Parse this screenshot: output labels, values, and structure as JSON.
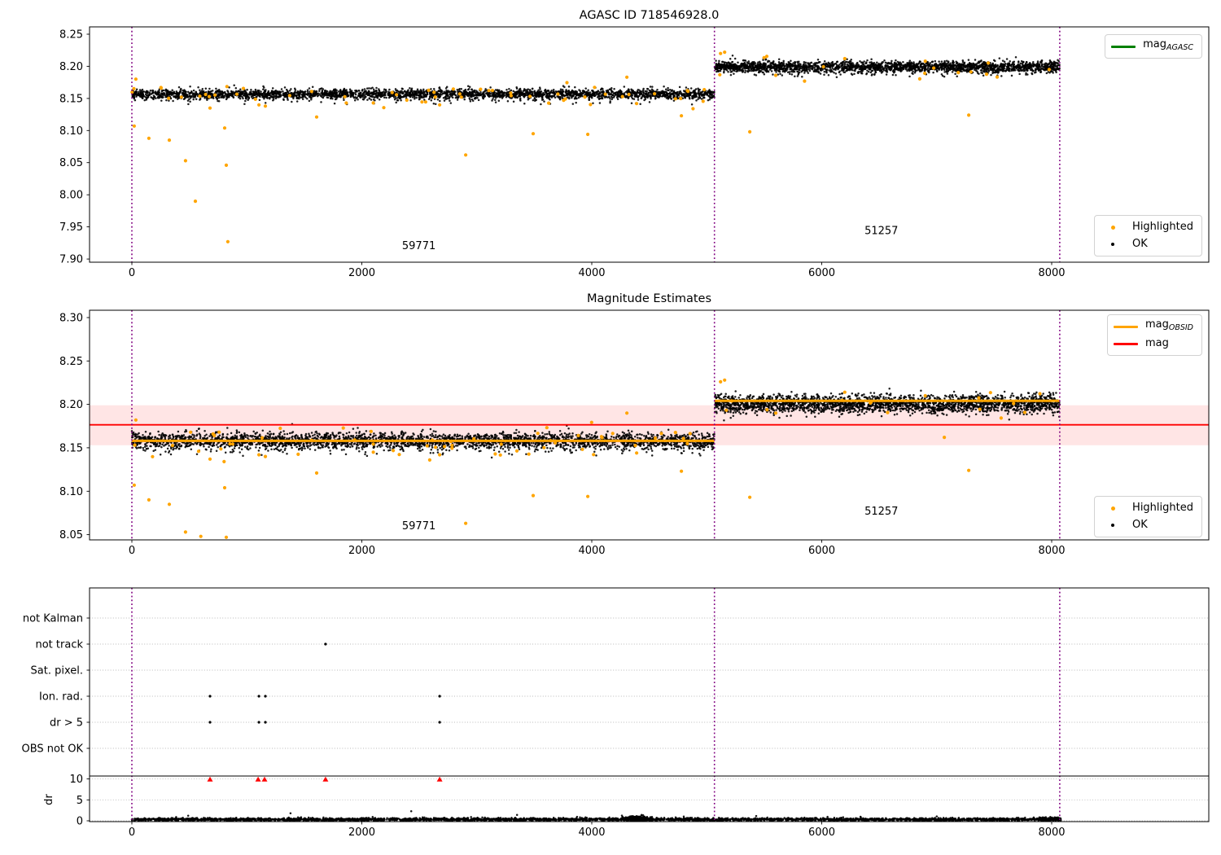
{
  "colors": {
    "ok": "#000000",
    "highlighted": "#FFA500",
    "mag_agasc_line": "#008000",
    "mag_obsid_line": "#FFA500",
    "mag_line": "#FF0000",
    "mag_band_fill": "rgba(255,0,0,0.10)",
    "obsid_boundary": "#800080",
    "grid": "#b9b9b9",
    "clipped_marker": "#FF0000",
    "spine": "#000000"
  },
  "x_axis": {
    "lim": [
      -368,
      9366
    ],
    "ticks": [
      0,
      2000,
      4000,
      6000,
      8000
    ],
    "tick_labels": [
      "0",
      "2000",
      "4000",
      "6000",
      "8000"
    ]
  },
  "obsid_boundaries_x": [
    0,
    5067,
    8070
  ],
  "chart_data": [
    {
      "type": "scatter",
      "id": "mag-agasc-panel",
      "title": "AGASC ID 718546928.0",
      "ylim": [
        7.895,
        8.2614
      ],
      "yticks": [
        7.9,
        7.95,
        8.0,
        8.05,
        8.1,
        8.15,
        8.2,
        8.25
      ],
      "ytick_labels": [
        "7.90",
        "7.95",
        "8.00",
        "8.05",
        "8.10",
        "8.15",
        "8.20",
        "8.25"
      ],
      "series": [
        {
          "name": "OK",
          "marker": "dot",
          "color": "#000000",
          "segments": [
            {
              "obsid": 59771,
              "x_range": [
                0,
                5067
              ],
              "mag_mean": 8.1565,
              "mag_sd": 0.004,
              "n_points": 3000,
              "n_tail": 90
            },
            {
              "obsid": 51257,
              "x_range": [
                5067,
                8070
              ],
              "mag_mean": 8.199,
              "mag_sd": 0.0045,
              "n_points": 2300,
              "n_tail": 60
            }
          ]
        },
        {
          "name": "Highlighted",
          "marker": "dot",
          "color": "#FFA500",
          "band_sprinkle": [
            {
              "x_range": [
                0,
                5067
              ],
              "mag_mean": 8.1545,
              "mag_sd": 0.008,
              "n_points": 55
            },
            {
              "x_range": [
                5067,
                8070
              ],
              "mag_mean": 8.199,
              "mag_sd": 0.009,
              "n_points": 14
            }
          ],
          "outliers": [
            [
              35,
              8.18
            ],
            [
              21,
              8.107
            ],
            [
              148,
              8.088
            ],
            [
              326,
              8.085
            ],
            [
              467,
              8.053
            ],
            [
              552,
              7.99
            ],
            [
              680,
              8.135
            ],
            [
              807,
              8.104
            ],
            [
              821,
              8.046
            ],
            [
              835,
              7.927
            ],
            [
              1105,
              8.14
            ],
            [
              1161,
              8.138
            ],
            [
              1607,
              8.121
            ],
            [
              2100,
              8.143
            ],
            [
              2677,
              8.14
            ],
            [
              2903,
              8.062
            ],
            [
              3490,
              8.095
            ],
            [
              3965,
              8.094
            ],
            [
              4305,
              8.183
            ],
            [
              4390,
              8.142
            ],
            [
              4779,
              8.123
            ],
            [
              5374,
              8.098
            ],
            [
              7278,
              8.124
            ],
            [
              5120,
              8.22
            ],
            [
              5155,
              8.222
            ],
            [
              5600,
              8.186
            ],
            [
              6200,
              8.212
            ],
            [
              6900,
              8.208
            ]
          ]
        }
      ],
      "annotations": [
        {
          "text": "59771",
          "x": 2350,
          "y": 7.915
        },
        {
          "text": "51257",
          "x": 6372,
          "y": 7.939
        }
      ],
      "legend_line": {
        "items": [
          {
            "type": "line",
            "text": "mag",
            "sub": "AGASC",
            "color": "#008000"
          }
        ]
      },
      "legend_markers": {
        "items": [
          {
            "type": "dot",
            "text": "Highlighted",
            "color": "#FFA500"
          },
          {
            "type": "dot",
            "text": "OK",
            "color": "#000000"
          }
        ]
      }
    },
    {
      "type": "scatter",
      "id": "magnitude-estimates-panel",
      "title": "Magnitude Estimates",
      "ylim": [
        8.044,
        8.3084
      ],
      "yticks": [
        8.05,
        8.1,
        8.15,
        8.2,
        8.25,
        8.3
      ],
      "ytick_labels": [
        "8.05",
        "8.10",
        "8.15",
        "8.20",
        "8.25",
        "8.30"
      ],
      "mag_line": 8.1765,
      "mag_band": [
        8.153,
        8.199
      ],
      "obsid_mag_lines": [
        {
          "x_range": [
            0,
            5067
          ],
          "mag": 8.158
        },
        {
          "x_range": [
            5067,
            8070
          ],
          "mag": 8.204
        }
      ],
      "series": [
        {
          "name": "OK",
          "marker": "dot",
          "color": "#000000",
          "segments": [
            {
              "obsid": 59771,
              "x_range": [
                0,
                5067
              ],
              "mag_mean": 8.158,
              "mag_sd": 0.0048,
              "n_points": 3000,
              "n_tail": 90
            },
            {
              "obsid": 51257,
              "x_range": [
                5067,
                8070
              ],
              "mag_mean": 8.2005,
              "mag_sd": 0.0052,
              "n_points": 2300,
              "n_tail": 60
            }
          ]
        },
        {
          "name": "Highlighted",
          "marker": "dot",
          "color": "#FFA500",
          "band_sprinkle": [
            {
              "x_range": [
                0,
                5067
              ],
              "mag_mean": 8.156,
              "mag_sd": 0.009,
              "n_points": 55
            },
            {
              "x_range": [
                5067,
                8070
              ],
              "mag_mean": 8.2005,
              "mag_sd": 0.01,
              "n_points": 14
            }
          ],
          "outliers": [
            [
              35,
              8.182
            ],
            [
              21,
              8.107
            ],
            [
              148,
              8.09
            ],
            [
              326,
              8.085
            ],
            [
              467,
              8.053
            ],
            [
              600,
              8.048
            ],
            [
              680,
              8.137
            ],
            [
              807,
              8.104
            ],
            [
              821,
              8.047
            ],
            [
              1105,
              8.142
            ],
            [
              1161,
              8.14
            ],
            [
              1607,
              8.121
            ],
            [
              2100,
              8.145
            ],
            [
              2677,
              8.142
            ],
            [
              2903,
              8.063
            ],
            [
              3490,
              8.095
            ],
            [
              3965,
              8.094
            ],
            [
              4305,
              8.19
            ],
            [
              4390,
              8.144
            ],
            [
              4779,
              8.123
            ],
            [
              5374,
              8.093
            ],
            [
              7066,
              8.162
            ],
            [
              7278,
              8.124
            ],
            [
              5120,
              8.226
            ],
            [
              5155,
              8.228
            ],
            [
              5600,
              8.19
            ],
            [
              6200,
              8.214
            ],
            [
              6900,
              8.21
            ]
          ]
        }
      ],
      "annotations": [
        {
          "text": "59771",
          "x": 2350,
          "y": 8.056
        },
        {
          "text": "51257",
          "x": 6372,
          "y": 8.073
        }
      ],
      "legend_line": {
        "items": [
          {
            "type": "line",
            "text": "mag",
            "sub": "OBSID",
            "color": "#FFA500"
          },
          {
            "type": "line",
            "text": "mag",
            "sub": "",
            "color": "#FF0000"
          }
        ]
      },
      "legend_markers": {
        "items": [
          {
            "type": "dot",
            "text": "Highlighted",
            "color": "#FFA500"
          },
          {
            "type": "dot",
            "text": "OK",
            "color": "#000000"
          }
        ]
      }
    },
    {
      "type": "scatter",
      "id": "flags-panel",
      "categories": [
        "not Kalman",
        "not track",
        "Sat. pixel.",
        "Ion. rad.",
        "dr > 5",
        "OBS not OK"
      ],
      "points": [
        {
          "category": "not track",
          "x_values": [
            1684
          ]
        },
        {
          "category": "Ion. rad.",
          "x_values": [
            680,
            1105,
            1161,
            2677
          ]
        },
        {
          "category": "dr > 5",
          "x_values": [
            680,
            1105,
            1161,
            2677
          ]
        }
      ]
    },
    {
      "type": "scatter",
      "id": "dr-panel",
      "ylabel": "dr",
      "ylim": [
        -0.2,
        10.7
      ],
      "yticks": [
        0,
        5,
        10
      ],
      "ytick_labels": [
        "0",
        "5",
        "10"
      ],
      "clipped_at_top_x": [
        680,
        1098,
        1154,
        1684,
        2677
      ],
      "base_scatter": {
        "x_range": [
          0,
          8080
        ],
        "n_points": 3200,
        "dr_mean": 0.32,
        "dr_sd": 0.18
      },
      "dense_cluster": {
        "x_center": 4390,
        "x_sd": 55,
        "n_points": 260,
        "dr_mean": 0.55,
        "dr_sd": 0.3
      },
      "right_cluster": {
        "x_range": [
          7890,
          8080
        ],
        "n_points": 170,
        "dr_mean": 0.45,
        "dr_sd": 0.22
      },
      "isolated_points": [
        [
          490,
          1.2
        ],
        [
          1380,
          1.8
        ],
        [
          2430,
          2.3
        ],
        [
          3350,
          1.4
        ],
        [
          4800,
          1.0
        ],
        [
          5430,
          1.15
        ],
        [
          6050,
          0.95
        ],
        [
          7000,
          1.05
        ]
      ]
    }
  ]
}
